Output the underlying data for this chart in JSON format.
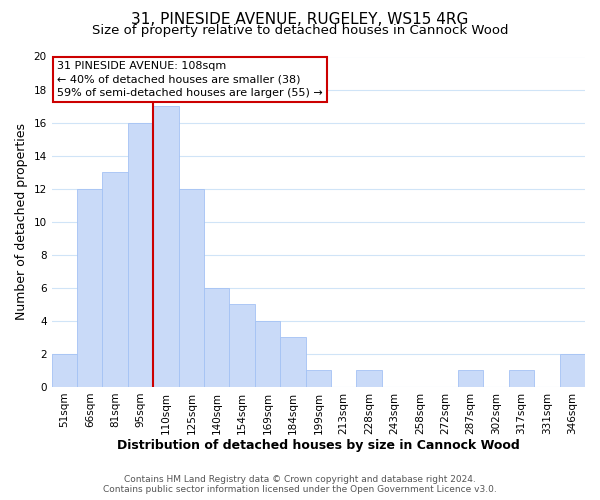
{
  "title": "31, PINESIDE AVENUE, RUGELEY, WS15 4RG",
  "subtitle": "Size of property relative to detached houses in Cannock Wood",
  "xlabel": "Distribution of detached houses by size in Cannock Wood",
  "ylabel": "Number of detached properties",
  "bar_labels": [
    "51sqm",
    "66sqm",
    "81sqm",
    "95sqm",
    "110sqm",
    "125sqm",
    "140sqm",
    "154sqm",
    "169sqm",
    "184sqm",
    "199sqm",
    "213sqm",
    "228sqm",
    "243sqm",
    "258sqm",
    "272sqm",
    "287sqm",
    "302sqm",
    "317sqm",
    "331sqm",
    "346sqm"
  ],
  "bar_heights": [
    2,
    12,
    13,
    16,
    17,
    12,
    6,
    5,
    4,
    3,
    1,
    0,
    1,
    0,
    0,
    0,
    1,
    0,
    1,
    0,
    2
  ],
  "bar_color": "#c9daf8",
  "bar_edge_color": "#a4c2f4",
  "vline_x_index": 4,
  "vline_color": "#cc0000",
  "ylim": [
    0,
    20
  ],
  "yticks": [
    0,
    2,
    4,
    6,
    8,
    10,
    12,
    14,
    16,
    18,
    20
  ],
  "annotation_title": "31 PINESIDE AVENUE: 108sqm",
  "annotation_line1": "← 40% of detached houses are smaller (38)",
  "annotation_line2": "59% of semi-detached houses are larger (55) →",
  "annotation_box_color": "#ffffff",
  "annotation_box_edge": "#cc0000",
  "footer1": "Contains HM Land Registry data © Crown copyright and database right 2024.",
  "footer2": "Contains public sector information licensed under the Open Government Licence v3.0.",
  "title_fontsize": 11,
  "subtitle_fontsize": 9.5,
  "xlabel_fontsize": 9,
  "ylabel_fontsize": 9,
  "tick_fontsize": 7.5,
  "annotation_fontsize": 8,
  "footer_fontsize": 6.5,
  "grid_color": "#d0e4f7",
  "background_color": "#ffffff"
}
